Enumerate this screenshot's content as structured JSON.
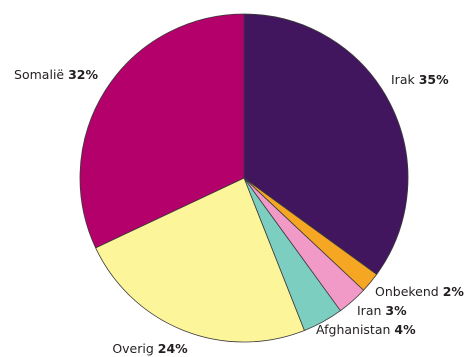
{
  "chart_data": {
    "type": "pie",
    "title": "",
    "start_angle_deg": 0,
    "direction": "clockwise",
    "slices": [
      {
        "label": "Irak",
        "percent_label": "35%",
        "value": 35,
        "color": "#42155f",
        "anchor": "start"
      },
      {
        "label": "Onbekend",
        "percent_label": "2%",
        "value": 2,
        "color": "#f5a623",
        "anchor": "start"
      },
      {
        "label": "Iran",
        "percent_label": "3%",
        "value": 3,
        "color": "#f29ac7",
        "anchor": "start"
      },
      {
        "label": "Afghanistan",
        "percent_label": "4%",
        "value": 4,
        "color": "#7ccfc0",
        "anchor": "start"
      },
      {
        "label": "Overig",
        "percent_label": "24%",
        "value": 24,
        "color": "#fdf59a",
        "anchor": "middle"
      },
      {
        "label": "Somalië",
        "percent_label": "32%",
        "value": 32,
        "color": "#b3006b",
        "anchor": "end"
      }
    ],
    "edge_color": "#3a3a3a"
  }
}
